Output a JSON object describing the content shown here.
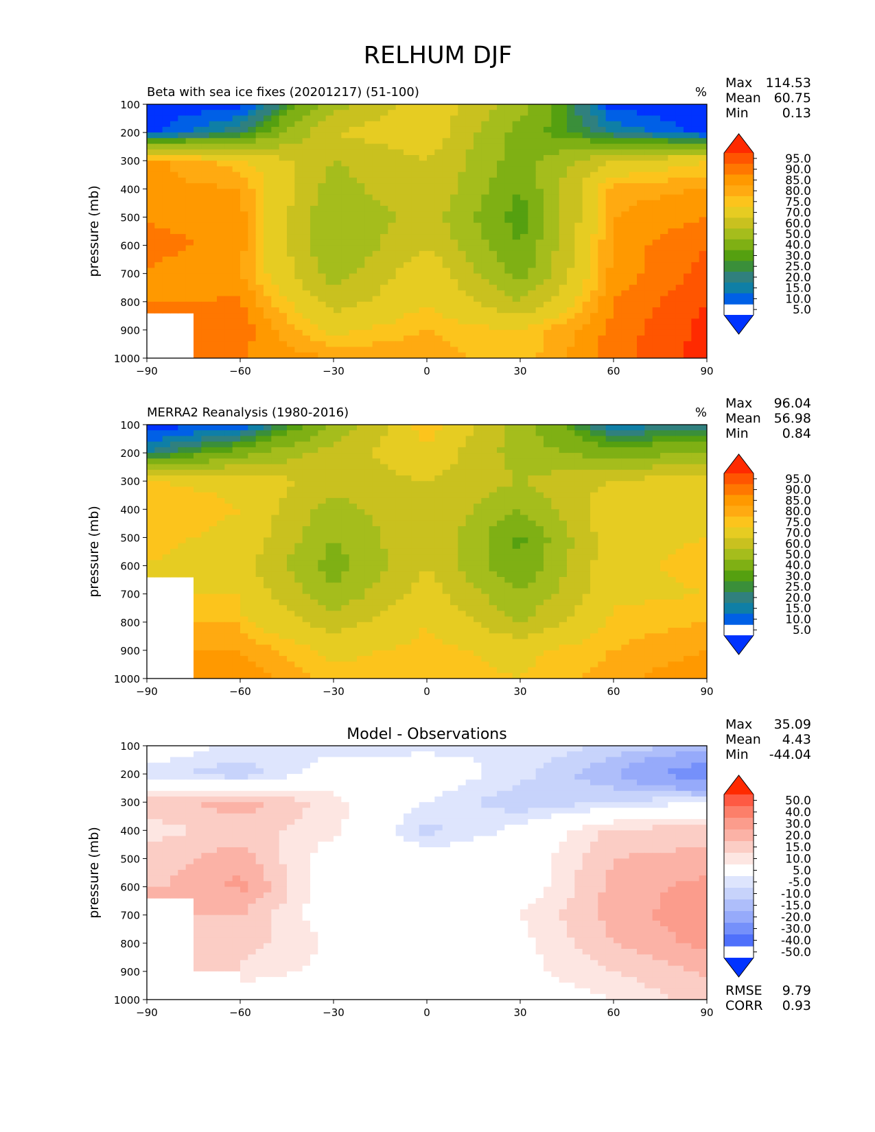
{
  "figure": {
    "title": "RELHUM DJF"
  },
  "chart_data": [
    {
      "type": "heatmap",
      "panel": "test",
      "title": "Beta with sea ice fixes (20201217) (51-100)",
      "units": "%",
      "xlabel": "",
      "ylabel": "pressure (mb)",
      "xlim": [
        -90,
        90
      ],
      "ylim": [
        1000,
        100
      ],
      "xticks": [
        "−90",
        "−60",
        "−30",
        "0",
        "30",
        "60",
        "90"
      ],
      "xtick_values": [
        -90,
        -60,
        -30,
        0,
        30,
        60,
        90
      ],
      "yticks": [
        "100",
        "200",
        "300",
        "400",
        "500",
        "600",
        "700",
        "800",
        "900",
        "1000"
      ],
      "ytick_values": [
        100,
        200,
        300,
        400,
        500,
        600,
        700,
        800,
        900,
        1000
      ],
      "stats": [
        {
          "label": "Max",
          "value": "114.53"
        },
        {
          "label": "Mean",
          "value": "60.75"
        },
        {
          "label": "Min",
          "value": "0.13"
        }
      ],
      "colorbar": {
        "levels": [
          "95.0",
          "90.0",
          "85.0",
          "80.0",
          "75.0",
          "70.0",
          "60.0",
          "50.0",
          "40.0",
          "30.0",
          "25.0",
          "20.0",
          "15.0",
          "10.0",
          "5.0"
        ],
        "colors": [
          "#ff2a00",
          "#ff5500",
          "#ff7700",
          "#ff9900",
          "#ffaa11",
          "#fcc41c",
          "#e6cc22",
          "#c9c11f",
          "#a5bd1c",
          "#7fb014",
          "#55a010",
          "#3a8f3a",
          "#30807e",
          "#0f7fa6",
          "#0060e6",
          "#0033ff"
        ]
      },
      "field": {
        "lat": [
          -90,
          -60,
          -30,
          0,
          30,
          60,
          90
        ],
        "pressure": [
          100,
          200,
          300,
          400,
          500,
          600,
          700,
          800,
          900,
          1000
        ],
        "values": [
          [
            2,
            2,
            45,
            68,
            45,
            2,
            2
          ],
          [
            2,
            20,
            60,
            68,
            35,
            15,
            2
          ],
          [
            82,
            72,
            50,
            60,
            35,
            60,
            70
          ],
          [
            82,
            80,
            45,
            60,
            30,
            78,
            80
          ],
          [
            84,
            82,
            40,
            55,
            25,
            80,
            85
          ],
          [
            88,
            82,
            40,
            60,
            30,
            82,
            90
          ],
          [
            84,
            80,
            45,
            68,
            35,
            82,
            92
          ],
          [
            84,
            86,
            55,
            70,
            50,
            85,
            95
          ],
          [
            null,
            88,
            68,
            75,
            70,
            87,
            97
          ],
          [
            null,
            85,
            80,
            78,
            72,
            88,
            97
          ]
        ]
      }
    },
    {
      "type": "heatmap",
      "panel": "reference",
      "title": "MERRA2 Reanalysis (1980-2016)",
      "units": "%",
      "xlabel": "",
      "ylabel": "pressure (mb)",
      "xlim": [
        -90,
        90
      ],
      "ylim": [
        1000,
        100
      ],
      "xticks": [
        "−90",
        "−60",
        "−30",
        "0",
        "30",
        "60",
        "90"
      ],
      "xtick_values": [
        -90,
        -60,
        -30,
        0,
        30,
        60,
        90
      ],
      "yticks": [
        "100",
        "200",
        "300",
        "400",
        "500",
        "600",
        "700",
        "800",
        "900",
        "1000"
      ],
      "ytick_values": [
        100,
        200,
        300,
        400,
        500,
        600,
        700,
        800,
        900,
        1000
      ],
      "stats": [
        {
          "label": "Max",
          "value": "96.04"
        },
        {
          "label": "Mean",
          "value": "56.98"
        },
        {
          "label": "Min",
          "value": "0.84"
        }
      ],
      "colorbar": {
        "levels": [
          "95.0",
          "90.0",
          "85.0",
          "80.0",
          "75.0",
          "70.0",
          "60.0",
          "50.0",
          "40.0",
          "30.0",
          "25.0",
          "20.0",
          "15.0",
          "10.0",
          "5.0"
        ],
        "colors": [
          "#ff2a00",
          "#ff5500",
          "#ff7700",
          "#ff9900",
          "#ffaa11",
          "#fcc41c",
          "#e6cc22",
          "#c9c11f",
          "#a5bd1c",
          "#7fb014",
          "#55a010",
          "#3a8f3a",
          "#30807e",
          "#0f7fa6",
          "#0060e6",
          "#0033ff"
        ]
      },
      "field": {
        "lat": [
          -90,
          -60,
          -30,
          0,
          30,
          60,
          90
        ],
        "pressure": [
          100,
          200,
          300,
          400,
          500,
          600,
          700,
          800,
          900,
          1000
        ],
        "values": [
          [
            2,
            5,
            40,
            75,
            45,
            10,
            18
          ],
          [
            15,
            35,
            55,
            68,
            45,
            35,
            40
          ],
          [
            70,
            68,
            55,
            60,
            50,
            60,
            68
          ],
          [
            75,
            70,
            45,
            60,
            40,
            68,
            70
          ],
          [
            72,
            68,
            40,
            60,
            28,
            68,
            70
          ],
          [
            70,
            65,
            35,
            60,
            30,
            68,
            72
          ],
          [
            null,
            68,
            42,
            65,
            40,
            68,
            70
          ],
          [
            null,
            72,
            55,
            70,
            50,
            72,
            75
          ],
          [
            null,
            80,
            68,
            72,
            68,
            75,
            80
          ],
          [
            null,
            85,
            72,
            72,
            70,
            78,
            85
          ]
        ]
      }
    },
    {
      "type": "heatmap",
      "panel": "difference",
      "title": "Model - Observations",
      "xlabel": "",
      "ylabel": "pressure (mb)",
      "xlim": [
        -90,
        90
      ],
      "ylim": [
        1000,
        100
      ],
      "xticks": [
        "−90",
        "−60",
        "−30",
        "0",
        "30",
        "60",
        "90"
      ],
      "xtick_values": [
        -90,
        -60,
        -30,
        0,
        30,
        60,
        90
      ],
      "yticks": [
        "100",
        "200",
        "300",
        "400",
        "500",
        "600",
        "700",
        "800",
        "900",
        "1000"
      ],
      "ytick_values": [
        100,
        200,
        300,
        400,
        500,
        600,
        700,
        800,
        900,
        1000
      ],
      "stats": [
        {
          "label": "Max",
          "value": "35.09"
        },
        {
          "label": "Mean",
          "value": "4.43"
        },
        {
          "label": "Min",
          "value": "-44.04"
        }
      ],
      "extra_stats": [
        {
          "label": "RMSE",
          "value": "9.79"
        },
        {
          "label": "CORR",
          "value": "0.93"
        }
      ],
      "colorbar": {
        "levels": [
          "50.0",
          "40.0",
          "30.0",
          "20.0",
          "15.0",
          "10.0",
          "5.0",
          "-5.0",
          "-10.0",
          "-15.0",
          "-20.0",
          "-30.0",
          "-40.0",
          "-50.0"
        ],
        "colors": [
          "#ff2a00",
          "#fe5a43",
          "#fc7f6a",
          "#fb9c8c",
          "#fbb2a6",
          "#fbcdc5",
          "#fde6e2",
          "#ffffff",
          "#dee5fd",
          "#c7d3fb",
          "#aebefa",
          "#96aafa",
          "#7590fa",
          "#4f70fb",
          "#0033ff"
        ]
      },
      "field": {
        "lat": [
          -90,
          -60,
          -30,
          0,
          30,
          60,
          90
        ],
        "pressure": [
          100,
          200,
          300,
          400,
          500,
          600,
          700,
          800,
          900,
          1000
        ],
        "values": [
          [
            0,
            -6,
            -8,
            -7,
            -5,
            -12,
            -16
          ],
          [
            -7,
            -14,
            0,
            0,
            -8,
            -20,
            -40
          ],
          [
            12,
            18,
            7,
            -5,
            -14,
            -10,
            -5
          ],
          [
            8,
            12,
            7,
            -12,
            -3,
            12,
            12
          ],
          [
            12,
            18,
            0,
            0,
            0,
            15,
            17
          ],
          [
            13,
            22,
            0,
            -5,
            0,
            17,
            22
          ],
          [
            null,
            15,
            0,
            -3,
            5,
            17,
            24
          ],
          [
            null,
            13,
            4,
            0,
            3,
            15,
            22
          ],
          [
            null,
            8,
            3,
            0,
            3,
            10,
            16
          ],
          [
            null,
            0,
            0,
            0,
            0,
            5,
            13
          ]
        ]
      }
    }
  ]
}
